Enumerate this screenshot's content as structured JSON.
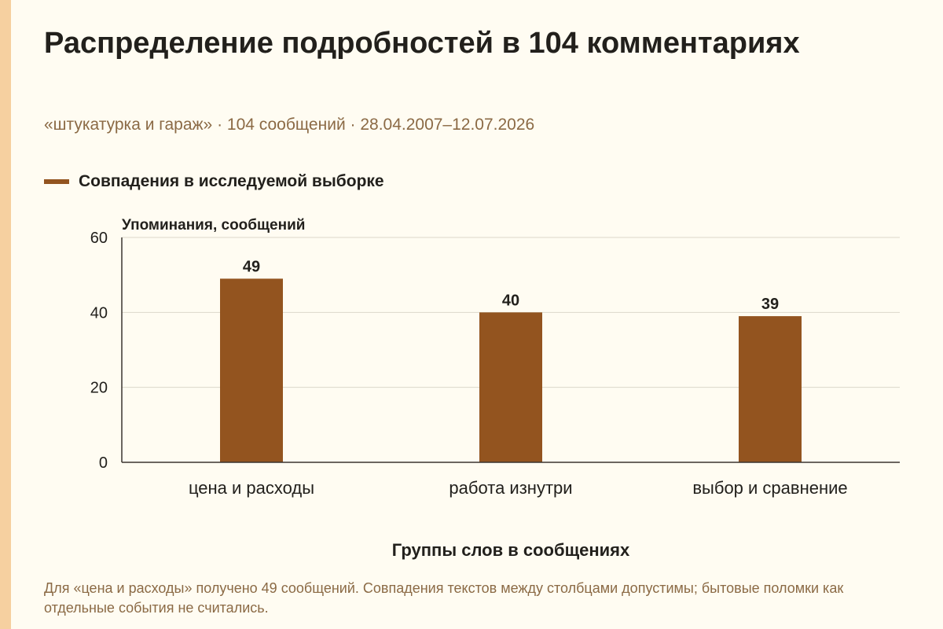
{
  "colors": {
    "accent_strip": "#f6d0a0",
    "bar": "#93541f",
    "gridline": "#dcd7cb",
    "axis": "#3a3530",
    "text_dark": "#22201c",
    "text_muted": "#8b6a45"
  },
  "header": {
    "title": "Распределение подробностей в 104 комментариях",
    "subtitle": "«штукатурка и гараж» · 104 сообщений · 28.04.2007–12.07.2026"
  },
  "legend": {
    "label": "Совпадения в исследуемой выборке",
    "position": "top-left"
  },
  "chart_data": {
    "type": "bar",
    "categories": [
      "цена и расходы",
      "работа изнутри",
      "выбор и сравнение"
    ],
    "series": [
      {
        "name": "Совпадения в исследуемой выборке",
        "values": [
          49,
          40,
          39
        ]
      }
    ],
    "data_labels": [
      "49",
      "40",
      "39"
    ],
    "ylabel": "Упоминания, сообщений",
    "xlabel": "Группы слов в сообщениях",
    "ylim": [
      0,
      60
    ],
    "y_ticks": [
      0,
      20,
      40,
      60
    ],
    "grid": true
  },
  "footnote": "Для «цена и расходы» получено 49 сообщений. Совпадения текстов между столбцами допустимы; бытовые поломки как отдельные события не считались."
}
